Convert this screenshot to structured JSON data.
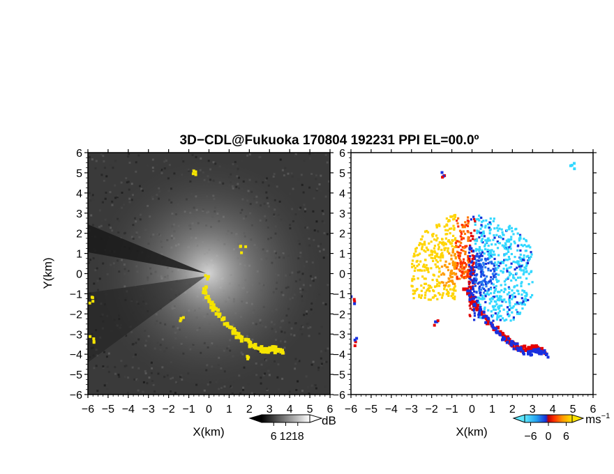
{
  "chart_data": [
    {
      "type": "heatmap",
      "panel": "reflectivity",
      "title": "3D−CDL@Fukuoka 170804 192231 PPI EL=00.0º",
      "xlabel": "X(km)",
      "ylabel": "Y(km)",
      "xlim": [
        -6,
        6
      ],
      "ylim": [
        -6,
        6
      ],
      "x_ticks": [
        "−6",
        "−5",
        "−4",
        "−3",
        "−2",
        "−1",
        "0",
        "1",
        "2",
        "3",
        "4",
        "5",
        "6"
      ],
      "y_ticks": [
        "6",
        "5",
        "4",
        "3",
        "2",
        "1",
        "0",
        "−1",
        "−2",
        "−3",
        "−4",
        "−5",
        "−6"
      ],
      "colorbar": {
        "unit": "dB",
        "ticks": [
          "6",
          "12",
          "18"
        ],
        "range": [
          0,
          24
        ],
        "colormap": "grayscale"
      },
      "highlight_color": "#f5e400",
      "highlight_path": [
        [
          -0.3,
          -0.7
        ],
        [
          0.2,
          -1.6
        ],
        [
          0.8,
          -2.4
        ],
        [
          1.5,
          -3.1
        ],
        [
          2.1,
          -3.5
        ],
        [
          2.7,
          -3.8
        ],
        [
          3.2,
          -3.7
        ],
        [
          3.6,
          -3.9
        ]
      ],
      "highlight_spots": [
        [
          -5.8,
          -3.3
        ],
        [
          -5.9,
          -1.3
        ],
        [
          -1.4,
          -2.3
        ],
        [
          -0.7,
          5.0
        ],
        [
          1.7,
          1.2
        ],
        [
          2.0,
          -4.2
        ],
        [
          -0.1,
          -0.1
        ]
      ]
    },
    {
      "type": "heatmap",
      "panel": "doppler_velocity",
      "xlabel": "X(km)",
      "xlim": [
        -6,
        6
      ],
      "ylim": [
        -6,
        6
      ],
      "x_ticks": [
        "−6",
        "−5",
        "−4",
        "−3",
        "−2",
        "−1",
        "0",
        "1",
        "2",
        "3",
        "4",
        "5",
        "6"
      ],
      "y_ticks": [
        "6",
        "5",
        "4",
        "3",
        "2",
        "1",
        "0",
        "−1",
        "−2",
        "−3",
        "−4",
        "−5",
        "−6"
      ],
      "colorbar": {
        "unit": "ms",
        "unit_exponent": "−1",
        "ticks": [
          "−6",
          "0",
          "6"
        ],
        "range": [
          -8,
          8
        ],
        "colormap": "cyan-blue-red-orange-yellow"
      },
      "positive_color": "#ffd400",
      "negative_color": "#33d8ff",
      "edge_colors": [
        "#e60000",
        "#1830e0"
      ],
      "echo_path": [
        [
          -0.3,
          -0.7
        ],
        [
          0.2,
          -1.6
        ],
        [
          0.8,
          -2.4
        ],
        [
          1.5,
          -3.1
        ],
        [
          2.1,
          -3.5
        ],
        [
          2.7,
          -3.8
        ],
        [
          3.2,
          -3.7
        ],
        [
          3.6,
          -3.9
        ]
      ],
      "spots": [
        [
          -1.4,
          4.9
        ],
        [
          5.0,
          5.4
        ],
        [
          -1.8,
          -2.4
        ],
        [
          -5.7,
          -3.4
        ],
        [
          -5.9,
          -1.3
        ]
      ]
    }
  ]
}
